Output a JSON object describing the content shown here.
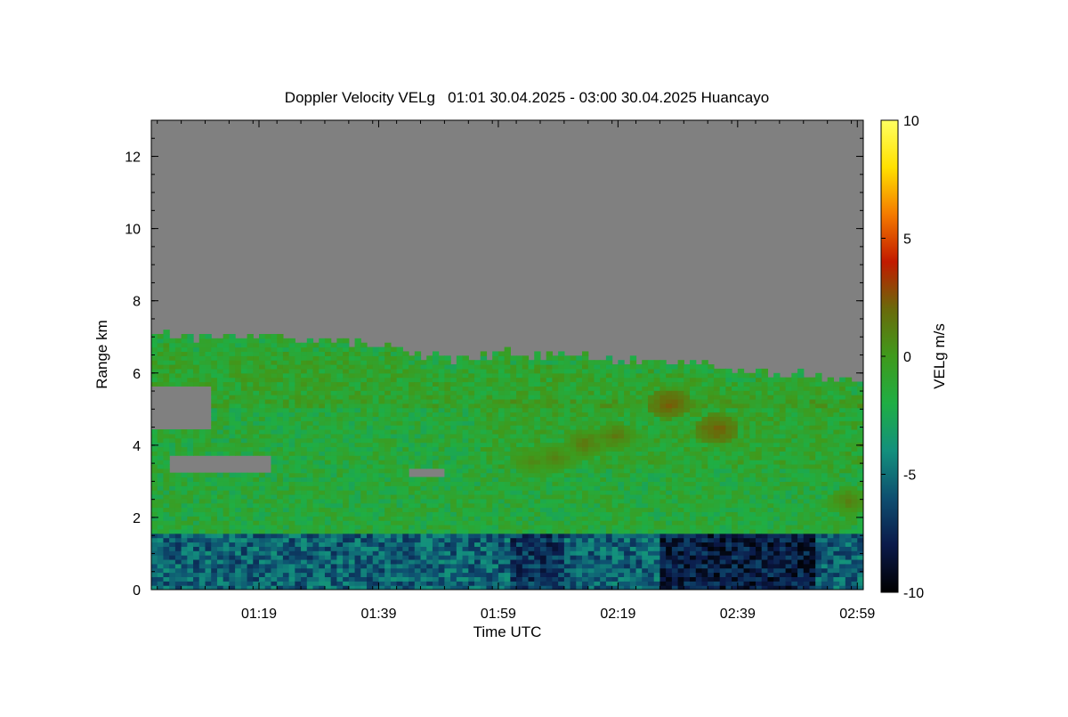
{
  "chart_data": {
    "type": "heatmap",
    "title": "Doppler Velocity VELg   01:01 30.04.2025 - 03:00 30.04.2025 Huancayo",
    "xlabel": "Time UTC",
    "ylabel": "Range km",
    "x_ticks": [
      "01:19",
      "01:39",
      "01:59",
      "02:19",
      "02:39",
      "02:59"
    ],
    "x_tick_minutes": [
      19,
      39,
      59,
      79,
      99,
      119
    ],
    "xlim_minutes": [
      1,
      120
    ],
    "y_ticks": [
      "0",
      "2",
      "4",
      "6",
      "8",
      "10",
      "12"
    ],
    "y_tick_values": [
      0,
      2,
      4,
      6,
      8,
      10,
      12
    ],
    "ylim": [
      0,
      13
    ],
    "colorbar": {
      "label": "VELg m/s",
      "ticks": [
        "10",
        "5",
        "0",
        "-5",
        "-10"
      ],
      "tick_values": [
        10,
        5,
        0,
        -5,
        -10
      ],
      "range": [
        -10,
        10
      ],
      "colors": [
        "#000000",
        "#0b1a4a",
        "#0e4f70",
        "#13907d",
        "#1fae44",
        "#3f9a1c",
        "#6a6a0a",
        "#c21a00",
        "#f47a00",
        "#ffe100",
        "#ffff60"
      ]
    },
    "no_signal_color": "#808080",
    "regions": {
      "cloud_top_km": [
        {
          "t": 1,
          "km": 7.1
        },
        {
          "t": 10,
          "km": 6.9
        },
        {
          "t": 20,
          "km": 7.0
        },
        {
          "t": 30,
          "km": 6.8
        },
        {
          "t": 40,
          "km": 6.7
        },
        {
          "t": 50,
          "km": 6.3
        },
        {
          "t": 60,
          "km": 6.5
        },
        {
          "t": 70,
          "km": 6.4
        },
        {
          "t": 80,
          "km": 6.3
        },
        {
          "t": 90,
          "km": 6.3
        },
        {
          "t": 100,
          "km": 6.0
        },
        {
          "t": 110,
          "km": 5.9
        },
        {
          "t": 120,
          "km": 5.7
        }
      ],
      "boundary_layer_top_km": 1.45,
      "boundary_layer_velocity": -5.5,
      "dominant_velocity": -1.5,
      "gaps": [
        {
          "t0": 1,
          "t1": 10,
          "km0": 4.4,
          "km1": 5.6
        },
        {
          "t0": 4,
          "t1": 20,
          "km0": 3.2,
          "km1": 3.7
        },
        {
          "t0": 44,
          "t1": 49,
          "km0": 3.1,
          "km1": 3.3
        }
      ],
      "updrafts": [
        {
          "t": 87,
          "km": 5.1,
          "v": 2.5
        },
        {
          "t": 95,
          "km": 4.4,
          "v": 2.5
        },
        {
          "t": 78,
          "km": 4.2,
          "v": 1.5
        },
        {
          "t": 73,
          "km": 4.0,
          "v": 1.5
        },
        {
          "t": 68,
          "km": 3.6,
          "v": 1.2
        },
        {
          "t": 64,
          "km": 3.5,
          "v": 1.0
        },
        {
          "t": 117,
          "km": 2.4,
          "v": 1.2
        }
      ]
    }
  }
}
